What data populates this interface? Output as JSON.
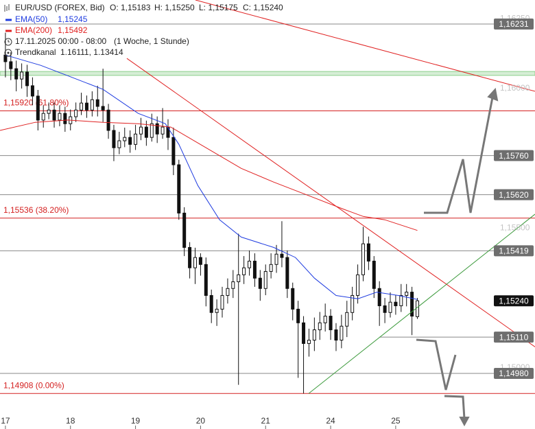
{
  "chart_data": {
    "type": "candlestick",
    "header": {
      "symbol": "EUR/USD (FOREX, Bid)",
      "open": "O: 1,15183",
      "high": "H: 1,15250",
      "low": "L: 1,15175",
      "close": "C: 1,15240",
      "period": "17.11.2025 00:00 - 08:00",
      "interval": "(1 Woche, 1 Stunde)",
      "channel": "Trendkanal",
      "channel_values": "1.16111, 1.13414"
    },
    "xlim": [
      -2,
      195.4
    ],
    "xticks": [
      {
        "value": 0,
        "label": "17"
      },
      {
        "value": 24,
        "label": "18"
      },
      {
        "value": 48,
        "label": "19"
      },
      {
        "value": 72,
        "label": "20"
      },
      {
        "value": 96,
        "label": "21"
      },
      {
        "value": 120,
        "label": "24"
      },
      {
        "value": 144,
        "label": "25"
      }
    ],
    "ylim": [
      1.1483,
      1.16317
    ],
    "yticks": [
      {
        "value": 1.1625,
        "label": "1,16250"
      },
      {
        "value": 1.16,
        "label": "1,16000"
      },
      {
        "value": 1.155,
        "label": "1,15500"
      },
      {
        "value": 1.15,
        "label": "1,15000"
      }
    ],
    "x": [
      0,
      2,
      4,
      6,
      8,
      10,
      12,
      14,
      16,
      18,
      20,
      22,
      24,
      26,
      28,
      30,
      32,
      34,
      36,
      38,
      40,
      42,
      44,
      46,
      48,
      50,
      52,
      54,
      56,
      58,
      60,
      62,
      64,
      66,
      68,
      70,
      72,
      74,
      76,
      78,
      80,
      82,
      84,
      86,
      88,
      90,
      92,
      94,
      96,
      98,
      100,
      102,
      104,
      106,
      108,
      110,
      112,
      114,
      116,
      118,
      120,
      122,
      124,
      126,
      128,
      130,
      132,
      134,
      136,
      138,
      140,
      142,
      144,
      146,
      148,
      150,
      152
    ],
    "open": [
      1.1612,
      1.16096,
      1.16071,
      1.16034,
      1.16059,
      1.1601,
      1.15973,
      1.15887,
      1.15911,
      1.15923,
      1.15887,
      1.15911,
      1.15874,
      1.15899,
      1.15923,
      1.15948,
      1.15923,
      1.1596,
      1.15936,
      1.15923,
      1.1585,
      1.15788,
      1.15813,
      1.15825,
      1.158,
      1.15837,
      1.15862,
      1.15825,
      1.15874,
      1.15837,
      1.15862,
      1.15825,
      1.15727,
      1.15554,
      1.15431,
      1.15358,
      1.15395,
      1.1537,
      1.15259,
      1.15198,
      1.1521,
      1.15259,
      1.15284,
      1.15308,
      1.15333,
      1.15358,
      1.15382,
      1.15321,
      1.15284,
      1.15345,
      1.1537,
      1.15407,
      1.15395,
      1.15284,
      1.1521,
      1.15161,
      1.15087,
      1.15099,
      1.15136,
      1.15161,
      1.15185,
      1.15136,
      1.15099,
      1.15149,
      1.15198,
      1.15259,
      1.15333,
      1.15444,
      1.15382,
      1.15284,
      1.15222,
      1.15198,
      1.15235,
      1.15222,
      1.15259,
      1.15271,
      1.15183
    ],
    "high": [
      1.162,
      1.1613,
      1.161,
      1.1609,
      1.16085,
      1.1604,
      1.15995,
      1.1594,
      1.1595,
      1.1595,
      1.1594,
      1.15935,
      1.15925,
      1.1595,
      1.15985,
      1.15975,
      1.1599,
      1.1601,
      1.16071,
      1.15945,
      1.1587,
      1.15845,
      1.1586,
      1.1585,
      1.1587,
      1.15895,
      1.15885,
      1.1591,
      1.159,
      1.1593,
      1.1589,
      1.1586,
      1.15745,
      1.15575,
      1.1545,
      1.1543,
      1.1541,
      1.15395,
      1.1528,
      1.15245,
      1.1529,
      1.1532,
      1.1535,
      1.1548,
      1.154,
      1.1542,
      1.1541,
      1.1535,
      1.1537,
      1.1541,
      1.1544,
      1.15525,
      1.1542,
      1.15305,
      1.1524,
      1.15185,
      1.1514,
      1.1518,
      1.152,
      1.1523,
      1.1521,
      1.1516,
      1.1519,
      1.1524,
      1.1529,
      1.1537,
      1.15505,
      1.1547,
      1.154,
      1.1531,
      1.1525,
      1.1527,
      1.1526,
      1.153,
      1.153,
      1.1529,
      1.1525
    ],
    "low": [
      1.1604,
      1.1603,
      1.1599,
      1.16,
      1.1597,
      1.1594,
      1.1585,
      1.1586,
      1.1589,
      1.1586,
      1.15865,
      1.15845,
      1.1585,
      1.1588,
      1.15905,
      1.15895,
      1.159,
      1.159,
      1.1588,
      1.1582,
      1.1574,
      1.15765,
      1.1579,
      1.1577,
      1.1578,
      1.15815,
      1.15795,
      1.1581,
      1.15805,
      1.1582,
      1.1578,
      1.1569,
      1.1553,
      1.154,
      1.1532,
      1.153,
      1.1533,
      1.1522,
      1.1516,
      1.1515,
      1.1518,
      1.1523,
      1.1525,
      1.14939,
      1.153,
      1.1533,
      1.1529,
      1.1524,
      1.1526,
      1.1532,
      1.1534,
      1.1536,
      1.1525,
      1.1517,
      1.14964,
      1.14908,
      1.1504,
      1.1506,
      1.151,
      1.1513,
      1.151,
      1.1506,
      1.1507,
      1.1511,
      1.1517,
      1.1523,
      1.1531,
      1.1535,
      1.1525,
      1.1515,
      1.1516,
      1.1518,
      1.1519,
      1.152,
      1.1522,
      1.15117,
      1.15175
    ],
    "close": [
      1.16096,
      1.16071,
      1.16034,
      1.16059,
      1.1601,
      1.15973,
      1.15887,
      1.15911,
      1.15923,
      1.15887,
      1.15911,
      1.15874,
      1.15899,
      1.15923,
      1.15948,
      1.15923,
      1.1596,
      1.15936,
      1.15923,
      1.1585,
      1.15788,
      1.15813,
      1.15825,
      1.158,
      1.15837,
      1.15862,
      1.15825,
      1.15874,
      1.15837,
      1.15862,
      1.15825,
      1.15727,
      1.15554,
      1.15431,
      1.15358,
      1.15395,
      1.1537,
      1.15259,
      1.15198,
      1.1521,
      1.15259,
      1.15284,
      1.15308,
      1.15333,
      1.15358,
      1.15382,
      1.15321,
      1.15284,
      1.15345,
      1.1537,
      1.15407,
      1.15395,
      1.15284,
      1.1521,
      1.15161,
      1.15087,
      1.15099,
      1.15136,
      1.15161,
      1.15185,
      1.15136,
      1.15099,
      1.15149,
      1.15198,
      1.15259,
      1.15333,
      1.15444,
      1.15382,
      1.15284,
      1.15222,
      1.15198,
      1.15235,
      1.15222,
      1.15259,
      1.15271,
      1.15185,
      1.1524
    ],
    "series": [
      {
        "name": "EMA(50)",
        "color": "#1f3ce0",
        "value_label": "1,15245",
        "x": [
          0,
          13,
          23,
          36,
          49,
          59,
          64,
          71,
          79,
          87,
          99,
          107,
          114,
          122,
          130,
          137,
          145,
          152
        ],
        "values": [
          1.1612,
          1.16083,
          1.16046,
          1.15997,
          1.15911,
          1.15874,
          1.158,
          1.15653,
          1.1553,
          1.15468,
          1.15431,
          1.15395,
          1.15321,
          1.15259,
          1.15247,
          1.15271,
          1.15259,
          1.15245
        ]
      },
      {
        "name": "EMA(200)",
        "color": "#e02020",
        "value_label": "1,15492",
        "x": [
          -2,
          11,
          23,
          36,
          49,
          61,
          74,
          87,
          99,
          112,
          125,
          132,
          140,
          152
        ],
        "values": [
          1.1585,
          1.15879,
          1.15887,
          1.15879,
          1.15874,
          1.15862,
          1.15788,
          1.15714,
          1.15665,
          1.15616,
          1.15567,
          1.15542,
          1.1553,
          1.15492
        ]
      }
    ],
    "trendlines": [
      {
        "color": "#e02020",
        "x": [
          44.8,
          195.4
        ],
        "values": [
          1.16108,
          1.15075
        ]
      },
      {
        "color": "#e02020",
        "x": [
          70.1,
          195.4
        ],
        "values": [
          1.16317,
          1.1599
        ]
      },
      {
        "color": "#3c9a3c",
        "x": [
          111.9,
          195.4
        ],
        "values": [
          1.14908,
          1.1555
        ]
      }
    ],
    "zone": [
      1.16047,
      1.16061
    ],
    "fib_levels": [
      {
        "value": 1.1592,
        "label": "1,15920 (61.80%)"
      },
      {
        "value": 1.15536,
        "label": "1,15536 (38.20%)"
      },
      {
        "value": 1.14908,
        "label": "1,14908 (0.00%)"
      }
    ],
    "price_levels": [
      {
        "value": 1.16231,
        "label": "1,16231"
      },
      {
        "value": 1.1576,
        "label": "1,15760"
      },
      {
        "value": 1.1562,
        "label": "1,15620"
      },
      {
        "value": 1.15419,
        "label": "1,15419"
      },
      {
        "value": 1.1511,
        "label": "1,15110",
        "from": 138
      },
      {
        "value": 1.1498,
        "label": "1,14980"
      }
    ],
    "current_price": {
      "value": 1.1524,
      "label": "1,15240"
    }
  }
}
